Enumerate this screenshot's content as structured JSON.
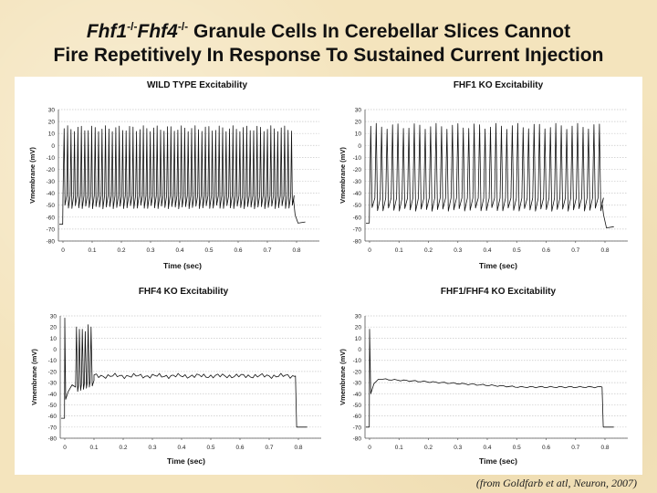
{
  "title": {
    "gene1": "Fhf1",
    "sup1": "-/-",
    "gene2": "Fhf4",
    "sup2": "-/-",
    "line1_rest": " Granule Cells In Cerebellar Slices Cannot",
    "line2": "Fire Repetitively In Response To Sustained Current Injection"
  },
  "citation": "(from Goldfarb et atl, Neuron, 2007)",
  "chart_data": [
    {
      "type": "line",
      "title": "WILD TYPE Excitability",
      "xlabel": "Time (sec)",
      "ylabel": "Vmembrane (mV)",
      "xlim": [
        0,
        0.8
      ],
      "ylim": [
        -80,
        30
      ],
      "xticks": [
        0,
        0.1,
        0.2,
        0.3,
        0.4,
        0.5,
        0.6,
        0.7,
        0.8
      ],
      "xtick_labels": [
        "0",
        "0.1",
        "0.2",
        "0.3",
        "0.4",
        "0.5",
        "0.6",
        "0.7",
        "0.8"
      ],
      "yticks": [
        30,
        20,
        10,
        0,
        -10,
        -20,
        -30,
        -40,
        -50,
        -60,
        -70,
        -80
      ],
      "grid": true,
      "trace": {
        "baseline_before": -66,
        "onset": 0.0,
        "offset": 0.79,
        "spike_interval": 0.0118,
        "spike_peak": 14,
        "spike_trough": -50,
        "end_value": -64
      }
    },
    {
      "type": "line",
      "title": "FHF1 KO Excitability",
      "xlabel": "Time (sec)",
      "ylabel": "Vmembrane (mV)",
      "xlim": [
        0,
        0.8
      ],
      "ylim": [
        -80,
        30
      ],
      "xticks": [
        0,
        0.1,
        0.2,
        0.3,
        0.4,
        0.5,
        0.6,
        0.7,
        0.8
      ],
      "xtick_labels": [
        "0",
        "0.1",
        "0.2",
        "0.3",
        "0.4",
        "0.5",
        "0.6",
        "0.7",
        "0.8"
      ],
      "yticks": [
        30,
        20,
        10,
        0,
        -10,
        -20,
        -30,
        -40,
        -50,
        -60,
        -70,
        -80
      ],
      "grid": true,
      "trace": {
        "baseline_before": -65,
        "onset": 0.0,
        "offset": 0.79,
        "spike_interval": 0.0185,
        "spike_peak": 16,
        "spike_trough": -52,
        "end_value": -68
      }
    },
    {
      "type": "line",
      "title": "FHF4 KO Excitability",
      "xlabel": "Time (sec)",
      "ylabel": "Vmembrane (mV)",
      "xlim": [
        0,
        0.8
      ],
      "ylim": [
        -80,
        30
      ],
      "xticks": [
        0,
        0.1,
        0.2,
        0.3,
        0.4,
        0.5,
        0.6,
        0.7,
        0.8
      ],
      "xtick_labels": [
        "0",
        "0.1",
        "0.2",
        "0.3",
        "0.4",
        "0.5",
        "0.6",
        "0.7",
        "0.8"
      ],
      "yticks": [
        30,
        20,
        10,
        0,
        -10,
        -20,
        -30,
        -40,
        -50,
        -60,
        -70,
        -80
      ],
      "grid": true,
      "trace": {
        "baseline_before": -62,
        "onset": 0.0,
        "offset": 0.79,
        "initial_spikes_t": [
          0.0,
          0.04,
          0.05,
          0.06,
          0.07,
          0.08,
          0.09
        ],
        "initial_spikes_peak": [
          28,
          20,
          18,
          18,
          16,
          22,
          20
        ],
        "plateau": -24,
        "end_value": -70
      }
    },
    {
      "type": "line",
      "title": "FHF1/FHF4 KO Excitability",
      "xlabel": "Time (sec)",
      "ylabel": "Vmembrane (mV)",
      "xlim": [
        0,
        0.8
      ],
      "ylim": [
        -80,
        30
      ],
      "xticks": [
        0,
        0.1,
        0.2,
        0.3,
        0.4,
        0.5,
        0.6,
        0.7,
        0.8
      ],
      "xtick_labels": [
        "0",
        "0.1",
        "0.2",
        "0.3",
        "0.4",
        "0.5",
        "0.6",
        "0.7",
        "0.8"
      ],
      "yticks": [
        30,
        20,
        10,
        0,
        -10,
        -20,
        -30,
        -40,
        -50,
        -60,
        -70,
        -80
      ],
      "grid": true,
      "trace": {
        "baseline_before": -70,
        "onset": 0.0,
        "offset": 0.79,
        "initial_peak": 18,
        "plateau_start": -27,
        "plateau_end": -34,
        "end_value": -70
      }
    }
  ]
}
